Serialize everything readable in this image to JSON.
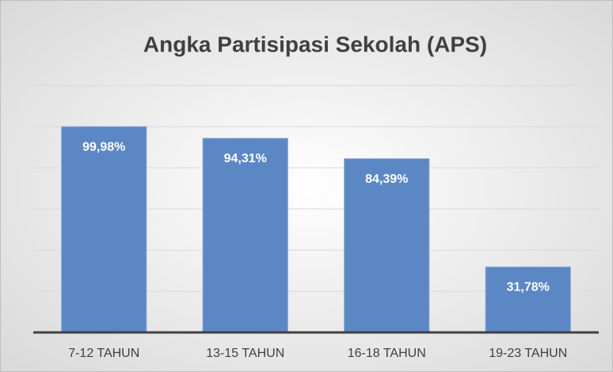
{
  "chart_data": {
    "type": "bar",
    "title": "Angka Partisipasi Sekolah (APS)",
    "categories": [
      "7-12 TAHUN",
      "13-15 TAHUN",
      "16-18 TAHUN",
      "19-23 TAHUN"
    ],
    "values": [
      99.98,
      94.31,
      84.39,
      31.78
    ],
    "value_labels": [
      "99,98%",
      "94,31%",
      "84,39%",
      "31,78%"
    ],
    "color": "#5b87c5",
    "ylim": [
      0,
      120
    ],
    "yticks": [
      0,
      20,
      40,
      60,
      80,
      100,
      120
    ],
    "grid": true
  }
}
